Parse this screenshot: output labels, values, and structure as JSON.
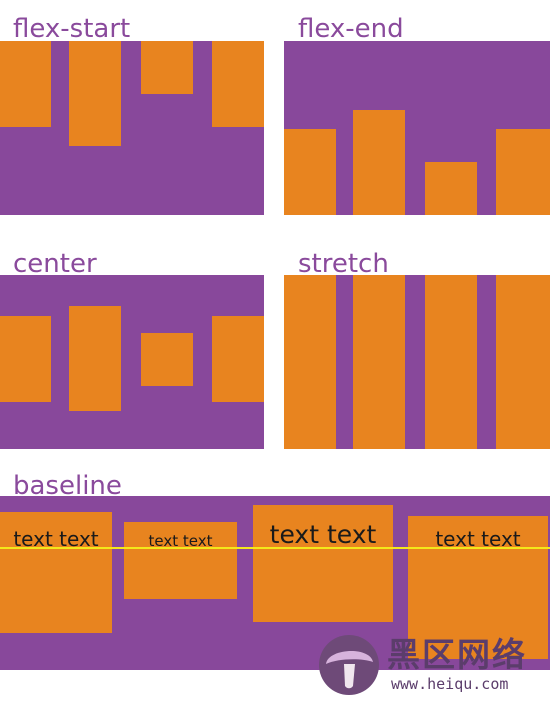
{
  "sections": {
    "flex_start": "flex-start",
    "flex_end": "flex-end",
    "center": "center",
    "stretch": "stretch",
    "baseline": "baseline"
  },
  "baseline_items": [
    "text text",
    "text text",
    "text text",
    "text text"
  ],
  "watermark": {
    "title": "黑区网络",
    "url": "www.heiqu.com"
  },
  "colors": {
    "container": "#88489b",
    "item": "#e8841f",
    "label": "#8a4a9c",
    "baseline_guide": "#f4e81a"
  }
}
